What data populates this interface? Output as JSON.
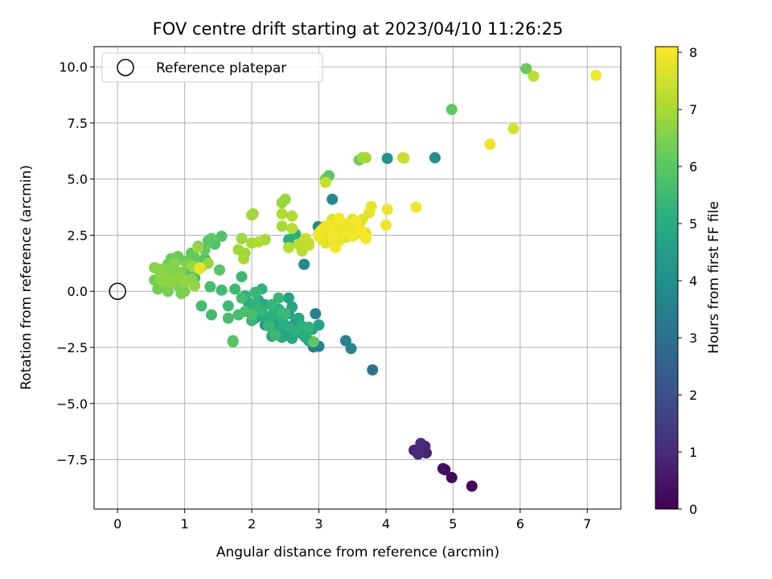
{
  "chart_data": {
    "type": "scatter",
    "title": "FOV centre drift starting at 2023/04/10 11:26:25",
    "xlabel": "Angular distance from reference (arcmin)",
    "ylabel": "Rotation from reference (arcmin)",
    "xlim": [
      -0.35,
      7.5
    ],
    "ylim": [
      -9.7,
      10.9
    ],
    "x_ticks": [
      0,
      1,
      2,
      3,
      4,
      5,
      6,
      7
    ],
    "x_tick_labels": [
      "0",
      "1",
      "2",
      "3",
      "4",
      "5",
      "6",
      "7"
    ],
    "y_ticks": [
      -7.5,
      -5.0,
      -2.5,
      0.0,
      2.5,
      5.0,
      7.5,
      10.0
    ],
    "y_tick_labels": [
      "−7.5",
      "−5.0",
      "−2.5",
      "0.0",
      "2.5",
      "5.0",
      "7.5",
      "10.0"
    ],
    "grid": true,
    "legend": {
      "position": "top-left",
      "entries": [
        "Reference platepar"
      ]
    },
    "reference_point": {
      "x": 0,
      "y": 0
    },
    "colorbar": {
      "label": "Hours from first FF file",
      "range": [
        0,
        8.1
      ],
      "colormap": "viridis",
      "ticks": [
        0,
        1,
        2,
        3,
        4,
        5,
        6,
        7,
        8
      ],
      "tick_labels": [
        "0",
        "1",
        "2",
        "3",
        "4",
        "5",
        "6",
        "7",
        "8"
      ]
    },
    "points": [
      [
        5.28,
        -8.68,
        0.1
      ],
      [
        4.98,
        -8.3,
        0.2
      ],
      [
        4.88,
        -7.95,
        0.3
      ],
      [
        4.85,
        -7.9,
        0.35
      ],
      [
        4.55,
        -7.0,
        0.7
      ],
      [
        4.5,
        -7.1,
        0.75
      ],
      [
        4.6,
        -7.2,
        0.8
      ],
      [
        4.42,
        -7.08,
        0.85
      ],
      [
        4.58,
        -6.9,
        0.9
      ],
      [
        4.52,
        -6.78,
        0.95
      ],
      [
        4.48,
        -7.25,
        1.0
      ],
      [
        3.8,
        -3.5,
        3.1
      ],
      [
        3.48,
        -2.55,
        3.7
      ],
      [
        3.4,
        -2.2,
        3.6
      ],
      [
        3.0,
        -2.45,
        3.5
      ],
      [
        2.92,
        -2.48,
        3.4
      ],
      [
        2.95,
        -1.0,
        3.6
      ],
      [
        2.7,
        -1.8,
        3.8
      ],
      [
        2.78,
        1.2,
        3.9
      ],
      [
        2.99,
        2.88,
        3.9
      ],
      [
        3.2,
        4.1,
        3.8
      ],
      [
        4.73,
        5.95,
        4.0
      ],
      [
        4.02,
        5.92,
        4.2
      ],
      [
        2.2,
        -1.5,
        4.3
      ],
      [
        2.4,
        -1.3,
        4.4
      ],
      [
        2.5,
        -1.8,
        4.5
      ],
      [
        2.55,
        -1.0,
        4.5
      ],
      [
        2.65,
        -1.4,
        4.5
      ],
      [
        2.75,
        -1.9,
        4.5
      ],
      [
        2.85,
        -2.2,
        4.55
      ],
      [
        2.9,
        -1.7,
        4.6
      ],
      [
        3.0,
        -1.5,
        4.6
      ],
      [
        2.55,
        -0.3,
        4.6
      ],
      [
        2.6,
        -0.7,
        4.7
      ],
      [
        2.35,
        -0.9,
        4.7
      ],
      [
        2.3,
        -2.0,
        4.75
      ],
      [
        2.45,
        -2.05,
        4.8
      ],
      [
        2.15,
        -1.1,
        4.8
      ],
      [
        2.05,
        -1.2,
        4.8
      ],
      [
        2.2,
        -0.6,
        4.85
      ],
      [
        2.1,
        -0.8,
        4.85
      ],
      [
        2.35,
        -1.7,
        4.9
      ],
      [
        2.5,
        -1.5,
        4.9
      ],
      [
        2.6,
        -2.1,
        4.9
      ],
      [
        2.7,
        -1.2,
        4.9
      ],
      [
        2.8,
        -2.05,
        4.95
      ],
      [
        2.0,
        -0.9,
        5.0
      ],
      [
        1.95,
        -0.5,
        5.0
      ],
      [
        2.25,
        -1.3,
        5.0
      ],
      [
        2.4,
        -0.8,
        5.0
      ],
      [
        2.55,
        2.3,
        5.1
      ],
      [
        2.65,
        2.55,
        5.1
      ],
      [
        2.1,
        -0.4,
        5.1
      ],
      [
        2.3,
        -1.05,
        5.1
      ],
      [
        2.45,
        -1.25,
        5.15
      ],
      [
        2.55,
        -1.6,
        5.15
      ],
      [
        2.65,
        -1.75,
        5.2
      ],
      [
        2.75,
        -1.55,
        5.2
      ],
      [
        2.85,
        -1.6,
        5.25
      ],
      [
        1.9,
        -0.2,
        5.25
      ],
      [
        2.05,
        -0.55,
        5.3
      ],
      [
        2.15,
        -0.9,
        5.3
      ],
      [
        2.0,
        -1.3,
        5.3
      ],
      [
        2.15,
        0.1,
        5.3
      ],
      [
        2.05,
        -0.05,
        5.35
      ],
      [
        2.4,
        -0.3,
        5.35
      ],
      [
        2.3,
        -0.6,
        5.35
      ],
      [
        2.45,
        -0.95,
        5.4
      ],
      [
        2.25,
        -1.55,
        5.4
      ],
      [
        2.35,
        -1.95,
        5.45
      ],
      [
        2.5,
        -1.0,
        5.45
      ],
      [
        1.85,
        0.65,
        5.5
      ],
      [
        1.75,
        0.1,
        5.5
      ],
      [
        1.65,
        -0.65,
        5.5
      ],
      [
        1.55,
        0.05,
        5.55
      ],
      [
        1.38,
        0.2,
        5.6
      ],
      [
        1.4,
        -1.05,
        5.6
      ],
      [
        1.25,
        -0.65,
        5.6
      ],
      [
        1.65,
        -1.2,
        5.65
      ],
      [
        1.8,
        -1.05,
        5.65
      ],
      [
        1.85,
        -0.3,
        5.6
      ],
      [
        1.9,
        -0.9,
        5.7
      ],
      [
        2.0,
        -1.05,
        5.7
      ],
      [
        1.72,
        -2.2,
        5.9
      ],
      [
        1.72,
        -2.25,
        5.9
      ],
      [
        2.92,
        -2.25,
        6.0
      ],
      [
        3.1,
        5.0,
        6.0
      ],
      [
        3.15,
        5.15,
        6.05
      ],
      [
        4.98,
        8.1,
        6.1
      ],
      [
        6.09,
        9.92,
        6.2
      ],
      [
        3.6,
        5.85,
        6.25
      ],
      [
        1.25,
        1.1,
        5.6
      ],
      [
        1.05,
        0.9,
        5.7
      ],
      [
        1.15,
        0.6,
        5.7
      ],
      [
        1.3,
        1.45,
        5.8
      ],
      [
        1.45,
        2.1,
        5.8
      ],
      [
        1.55,
        2.45,
        5.85
      ],
      [
        1.52,
        0.95,
        5.9
      ],
      [
        1.35,
        2.25,
        6.0
      ],
      [
        1.4,
        2.35,
        6.0
      ],
      [
        1.3,
        1.85,
        6.1
      ],
      [
        1.2,
        2.0,
        6.1
      ],
      [
        1.15,
        1.5,
        6.15
      ],
      [
        1.1,
        1.7,
        6.15
      ],
      [
        1.0,
        1.35,
        6.2
      ],
      [
        0.9,
        1.55,
        6.2
      ],
      [
        0.8,
        1.45,
        6.2
      ],
      [
        0.75,
        1.2,
        6.25
      ],
      [
        0.85,
        0.9,
        6.25
      ],
      [
        0.7,
        0.6,
        6.3
      ],
      [
        0.65,
        0.3,
        6.3
      ],
      [
        0.55,
        0.5,
        6.35
      ],
      [
        0.6,
        0.1,
        6.35
      ],
      [
        0.75,
        0.0,
        6.4
      ],
      [
        0.9,
        0.25,
        6.4
      ],
      [
        1.0,
        0.0,
        6.45
      ],
      [
        0.95,
        -0.1,
        6.45
      ],
      [
        1.05,
        1.2,
        6.5
      ],
      [
        0.95,
        0.85,
        6.5
      ],
      [
        0.8,
        0.75,
        6.55
      ],
      [
        0.7,
        1.0,
        6.55
      ],
      [
        0.6,
        1.0,
        6.6
      ],
      [
        0.55,
        1.05,
        6.6
      ],
      [
        0.65,
        0.75,
        6.6
      ],
      [
        0.85,
        1.25,
        6.6
      ],
      [
        1.1,
        0.55,
        6.65
      ],
      [
        0.9,
        0.65,
        6.65
      ],
      [
        0.7,
        0.45,
        6.7
      ],
      [
        0.65,
        0.55,
        6.7
      ],
      [
        0.8,
        0.4,
        6.7
      ],
      [
        1.0,
        0.4,
        6.75
      ],
      [
        1.15,
        0.25,
        6.75
      ],
      [
        1.12,
        1.1,
        6.8
      ],
      [
        1.2,
        1.95,
        6.8
      ],
      [
        1.35,
        1.25,
        6.8
      ],
      [
        1.85,
        2.35,
        6.85
      ],
      [
        1.8,
        1.85,
        6.9
      ],
      [
        1.9,
        1.7,
        6.9
      ],
      [
        1.88,
        1.45,
        7.0
      ],
      [
        2.02,
        3.45,
        6.9
      ],
      [
        2.0,
        3.4,
        6.9
      ],
      [
        2.45,
        3.95,
        6.8
      ],
      [
        2.5,
        4.1,
        6.8
      ],
      [
        3.65,
        5.95,
        6.9
      ],
      [
        3.7,
        5.95,
        6.95
      ],
      [
        2.0,
        2.15,
        7.0
      ],
      [
        2.2,
        2.3,
        7.0
      ],
      [
        2.1,
        2.2,
        7.1
      ],
      [
        2.45,
        2.9,
        7.0
      ],
      [
        2.45,
        3.45,
        7.1
      ],
      [
        2.6,
        3.35,
        7.1
      ],
      [
        2.6,
        2.8,
        7.2
      ],
      [
        2.55,
        1.95,
        7.2
      ],
      [
        2.7,
        2.1,
        7.25
      ],
      [
        2.75,
        1.8,
        7.25
      ],
      [
        2.8,
        2.3,
        7.3
      ],
      [
        2.85,
        2.05,
        7.3
      ],
      [
        2.8,
        2.35,
        7.4
      ],
      [
        2.85,
        2.15,
        7.35
      ],
      [
        3.1,
        4.85,
        7.4
      ],
      [
        4.25,
        5.95,
        7.4
      ],
      [
        4.27,
        5.93,
        7.45
      ],
      [
        1.22,
        1.0,
        7.8
      ],
      [
        1.23,
        1.05,
        7.85
      ],
      [
        3.0,
        2.6,
        7.5
      ],
      [
        3.05,
        2.3,
        7.5
      ],
      [
        3.1,
        2.9,
        7.55
      ],
      [
        3.15,
        2.5,
        7.55
      ],
      [
        3.2,
        3.2,
        7.6
      ],
      [
        3.25,
        2.0,
        7.6
      ],
      [
        3.3,
        2.7,
        7.6
      ],
      [
        3.35,
        3.0,
        7.65
      ],
      [
        3.4,
        2.4,
        7.65
      ],
      [
        3.45,
        2.8,
        7.7
      ],
      [
        3.5,
        3.2,
        7.7
      ],
      [
        3.55,
        2.55,
        7.7
      ],
      [
        3.6,
        2.9,
        7.75
      ],
      [
        3.65,
        3.2,
        7.75
      ],
      [
        3.7,
        2.6,
        7.8
      ],
      [
        3.75,
        3.5,
        7.8
      ],
      [
        3.78,
        3.78,
        7.85
      ],
      [
        3.1,
        2.15,
        7.8
      ],
      [
        3.2,
        2.75,
        7.85
      ],
      [
        3.25,
        2.85,
        7.85
      ],
      [
        3.3,
        2.25,
        7.9
      ],
      [
        3.35,
        2.6,
        7.9
      ],
      [
        3.4,
        3.0,
        7.9
      ],
      [
        3.45,
        2.7,
        7.95
      ],
      [
        3.5,
        2.45,
        7.95
      ],
      [
        3.15,
        2.95,
        7.95
      ],
      [
        3.05,
        2.75,
        8.0
      ],
      [
        3.2,
        2.45,
        8.0
      ],
      [
        3.3,
        3.25,
        8.0
      ],
      [
        3.55,
        3.1,
        8.0
      ],
      [
        3.62,
        2.7,
        8.05
      ],
      [
        3.7,
        2.35,
        8.05
      ],
      [
        3.25,
        1.95,
        8.0
      ],
      [
        3.0,
        2.45,
        7.95
      ],
      [
        4.0,
        2.95,
        7.9
      ],
      [
        4.02,
        3.65,
        7.9
      ],
      [
        4.45,
        3.75,
        7.95
      ],
      [
        5.9,
        7.25,
        7.6
      ],
      [
        5.55,
        6.55,
        7.9
      ],
      [
        6.2,
        9.58,
        7.3
      ],
      [
        7.13,
        9.62,
        8.0
      ]
    ]
  }
}
